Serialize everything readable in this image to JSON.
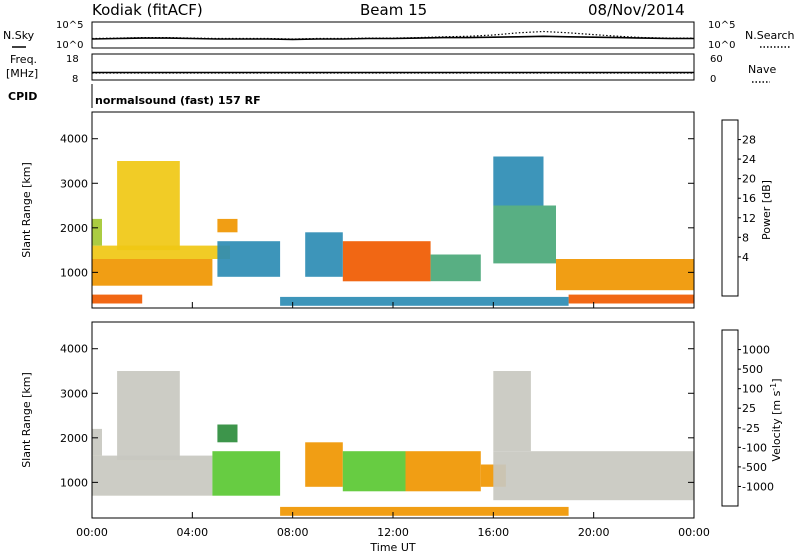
{
  "header": {
    "station": "Kodiak (fitACF)",
    "beam": "Beam 15",
    "date": "08/Nov/2014"
  },
  "strip_labels": {
    "nsky": "N.Sky",
    "nsearch": "N.Search",
    "freq_line1": "Freq.",
    "freq_line2": "[MHz]",
    "nave": "Nave",
    "cpid": "CPID",
    "cpid_value": "normalsound (fast) 157 RF"
  },
  "colors": {
    "axis": "#000000",
    "noise_line": "#000000",
    "no_data": "#ffffff",
    "ground_scatter": "#c8c8c0"
  },
  "chart_data": [
    {
      "type": "line",
      "name": "noise",
      "ylabels_left": [
        "10^5",
        "10^0"
      ],
      "ylabels_right": [
        "10^5",
        "10^0"
      ],
      "x": [
        0,
        1,
        2,
        3,
        4,
        5,
        6,
        7,
        8,
        9,
        10,
        11,
        12,
        13,
        14,
        15,
        16,
        17,
        18,
        19,
        20,
        21,
        22,
        23,
        24
      ],
      "series": [
        {
          "name": "N.Sky",
          "style": "solid",
          "values": [
            1.6,
            1.7,
            1.8,
            1.8,
            1.7,
            1.6,
            1.6,
            1.6,
            1.5,
            1.6,
            1.6,
            1.7,
            1.7,
            1.8,
            1.9,
            1.9,
            2.0,
            2.1,
            2.2,
            2.1,
            2.0,
            1.9,
            1.8,
            1.7,
            1.7
          ]
        },
        {
          "name": "N.Search",
          "style": "dotted",
          "values": [
            1.7,
            1.8,
            1.9,
            1.9,
            1.8,
            1.7,
            1.7,
            1.7,
            1.6,
            1.7,
            1.7,
            1.8,
            1.8,
            1.9,
            2.1,
            2.2,
            2.5,
            3.0,
            3.3,
            3.0,
            2.6,
            2.2,
            1.9,
            1.8,
            1.8
          ]
        }
      ]
    },
    {
      "type": "line",
      "name": "frequency",
      "yticks_left": [
        "18",
        "8"
      ],
      "yticks_right": [
        "60",
        "0"
      ],
      "x": [
        0,
        24
      ],
      "series": [
        {
          "name": "Freq.",
          "style": "solid",
          "values": [
            10.5,
            10.5
          ]
        },
        {
          "name": "Nave",
          "style": "dotted",
          "values": [
            14,
            14
          ]
        }
      ]
    },
    {
      "type": "heatmap",
      "name": "power",
      "xlabel": "",
      "ylabel": "Slant Range [km]",
      "xlim": [
        0,
        24
      ],
      "ylim": [
        200,
        4600
      ],
      "yticks": [
        1000,
        2000,
        3000,
        4000
      ],
      "colorbar": {
        "label": "Power [dB]",
        "ticks": [
          4,
          8,
          12,
          16,
          20,
          24,
          28
        ],
        "colors": [
          "#0000ff",
          "#1e5ad2",
          "#2d8cb4",
          "#4aa878",
          "#a4c832",
          "#f0c814",
          "#f09600",
          "#f05a00",
          "#f00000"
        ]
      },
      "regions": [
        {
          "t0": 0.0,
          "t1": 4.8,
          "r0": 700,
          "r1": 1300,
          "level": 24
        },
        {
          "t0": 0.0,
          "t1": 5.5,
          "r0": 1300,
          "r1": 1600,
          "level": 20
        },
        {
          "t0": 0.0,
          "t1": 0.4,
          "r0": 1600,
          "r1": 2200,
          "level": 16
        },
        {
          "t0": 1.0,
          "t1": 3.5,
          "r0": 1500,
          "r1": 3500,
          "level": 18
        },
        {
          "t0": 5.0,
          "t1": 7.5,
          "r0": 900,
          "r1": 1700,
          "level": 8
        },
        {
          "t0": 5.0,
          "t1": 5.8,
          "r0": 1900,
          "r1": 2200,
          "level": 24
        },
        {
          "t0": 10.0,
          "t1": 13.5,
          "r0": 800,
          "r1": 1700,
          "level": 26
        },
        {
          "t0": 13.5,
          "t1": 15.5,
          "r0": 800,
          "r1": 1400,
          "level": 12
        },
        {
          "t0": 8.5,
          "t1": 10.0,
          "r0": 900,
          "r1": 1900,
          "level": 8
        },
        {
          "t0": 16.0,
          "t1": 18.5,
          "r0": 1200,
          "r1": 2500,
          "level": 10
        },
        {
          "t0": 18.5,
          "t1": 24.0,
          "r0": 600,
          "r1": 1300,
          "level": 24
        },
        {
          "t0": 16.0,
          "t1": 18.0,
          "r0": 2500,
          "r1": 3600,
          "level": 8
        },
        {
          "t0": 0.0,
          "t1": 2.0,
          "r0": 300,
          "r1": 500,
          "level": 26
        },
        {
          "t0": 19.0,
          "t1": 24.0,
          "r0": 300,
          "r1": 500,
          "level": 26
        },
        {
          "t0": 7.5,
          "t1": 19.0,
          "r0": 250,
          "r1": 450,
          "level": 6
        }
      ]
    },
    {
      "type": "heatmap",
      "name": "velocity",
      "xlabel": "Time UT",
      "ylabel": "Slant Range [km]",
      "xlim": [
        0,
        24
      ],
      "ylim": [
        200,
        4600
      ],
      "yticks": [
        1000,
        2000,
        3000,
        4000
      ],
      "xtick_labels": [
        "00:00",
        "04:00",
        "08:00",
        "12:00",
        "16:00",
        "20:00",
        "00:00"
      ],
      "xticks": [
        0,
        4,
        8,
        12,
        16,
        20,
        24
      ],
      "colorbar": {
        "label": "Velocity [m s^-1]",
        "ticks": [
          "1000",
          "500",
          "100",
          "25",
          "-25",
          "-100",
          "-500",
          "-1000"
        ],
        "colors": [
          "#1e3cc8",
          "#2d78b4",
          "#2d8c3c",
          "#5ac832",
          "#c8c8c0",
          "#f0c878",
          "#f09600",
          "#f05a00",
          "#f00000"
        ]
      },
      "regions": [
        {
          "t0": 0.0,
          "t1": 4.8,
          "r0": 700,
          "r1": 1600,
          "level": "ground"
        },
        {
          "t0": 0.0,
          "t1": 0.4,
          "r0": 1600,
          "r1": 2200,
          "level": "ground"
        },
        {
          "t0": 1.0,
          "t1": 3.5,
          "r0": 1500,
          "r1": 3500,
          "level": "ground"
        },
        {
          "t0": 5.0,
          "t1": 5.8,
          "r0": 1900,
          "r1": 2300,
          "level": 100
        },
        {
          "t0": 4.8,
          "t1": 7.5,
          "r0": 700,
          "r1": 1700,
          "level": 25
        },
        {
          "t0": 8.5,
          "t1": 10.0,
          "r0": 900,
          "r1": 1900,
          "level": -100
        },
        {
          "t0": 10.0,
          "t1": 12.5,
          "r0": 800,
          "r1": 1700,
          "level": 25
        },
        {
          "t0": 12.5,
          "t1": 15.5,
          "r0": 800,
          "r1": 1700,
          "level": -100
        },
        {
          "t0": 15.5,
          "t1": 16.5,
          "r0": 900,
          "r1": 1400,
          "level": -100
        },
        {
          "t0": 16.0,
          "t1": 24.0,
          "r0": 600,
          "r1": 1700,
          "level": "ground"
        },
        {
          "t0": 16.0,
          "t1": 17.5,
          "r0": 1700,
          "r1": 3500,
          "level": "ground"
        },
        {
          "t0": 7.5,
          "t1": 19.0,
          "r0": 250,
          "r1": 450,
          "level": -100
        }
      ]
    }
  ]
}
